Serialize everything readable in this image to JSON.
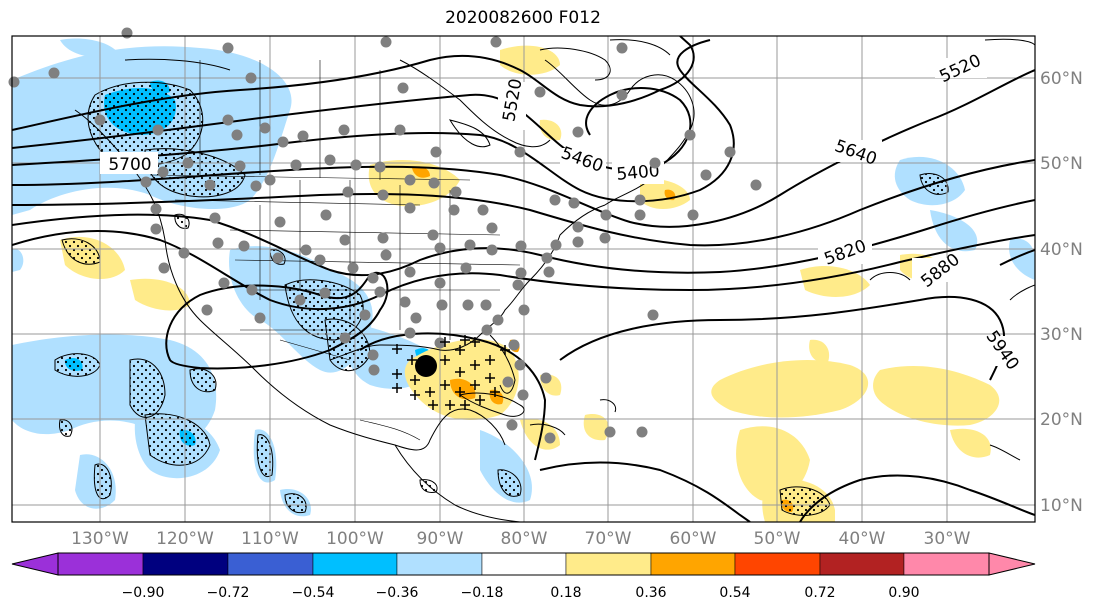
{
  "title": "2020082600 F012",
  "longitude_labels": [
    "130°W",
    "120°W",
    "110°W",
    "100°W",
    "90°W",
    "80°W",
    "70°W",
    "60°W",
    "50°W",
    "40°W",
    "30°W"
  ],
  "latitude_labels": [
    "60°N",
    "50°N",
    "40°N",
    "30°N",
    "20°N",
    "10°N"
  ],
  "contour_labels": [
    "5520",
    "5520",
    "5460",
    "5400",
    "5640",
    "5700",
    "5820",
    "5880",
    "5940"
  ],
  "colorbar": {
    "tick_labels": [
      "−0.90",
      "−0.72",
      "−0.54",
      "−0.36",
      "−0.18",
      "0.18",
      "0.36",
      "0.54",
      "0.72",
      "0.90"
    ],
    "colors": [
      "#9b30d9",
      "#00007f",
      "#3a5fd3",
      "#00bfff",
      "#b0e0ff",
      "#ffffff",
      "#ffeb8a",
      "#ffa500",
      "#ff4500",
      "#b22222",
      "#ff88aa"
    ]
  },
  "colors": {
    "light_blue": "#b0e0ff",
    "mid_blue": "#00bfff",
    "light_yellow": "#ffeb8a",
    "orange": "#ffa500",
    "station_gray": "#808080",
    "grid_gray": "#999999"
  }
}
